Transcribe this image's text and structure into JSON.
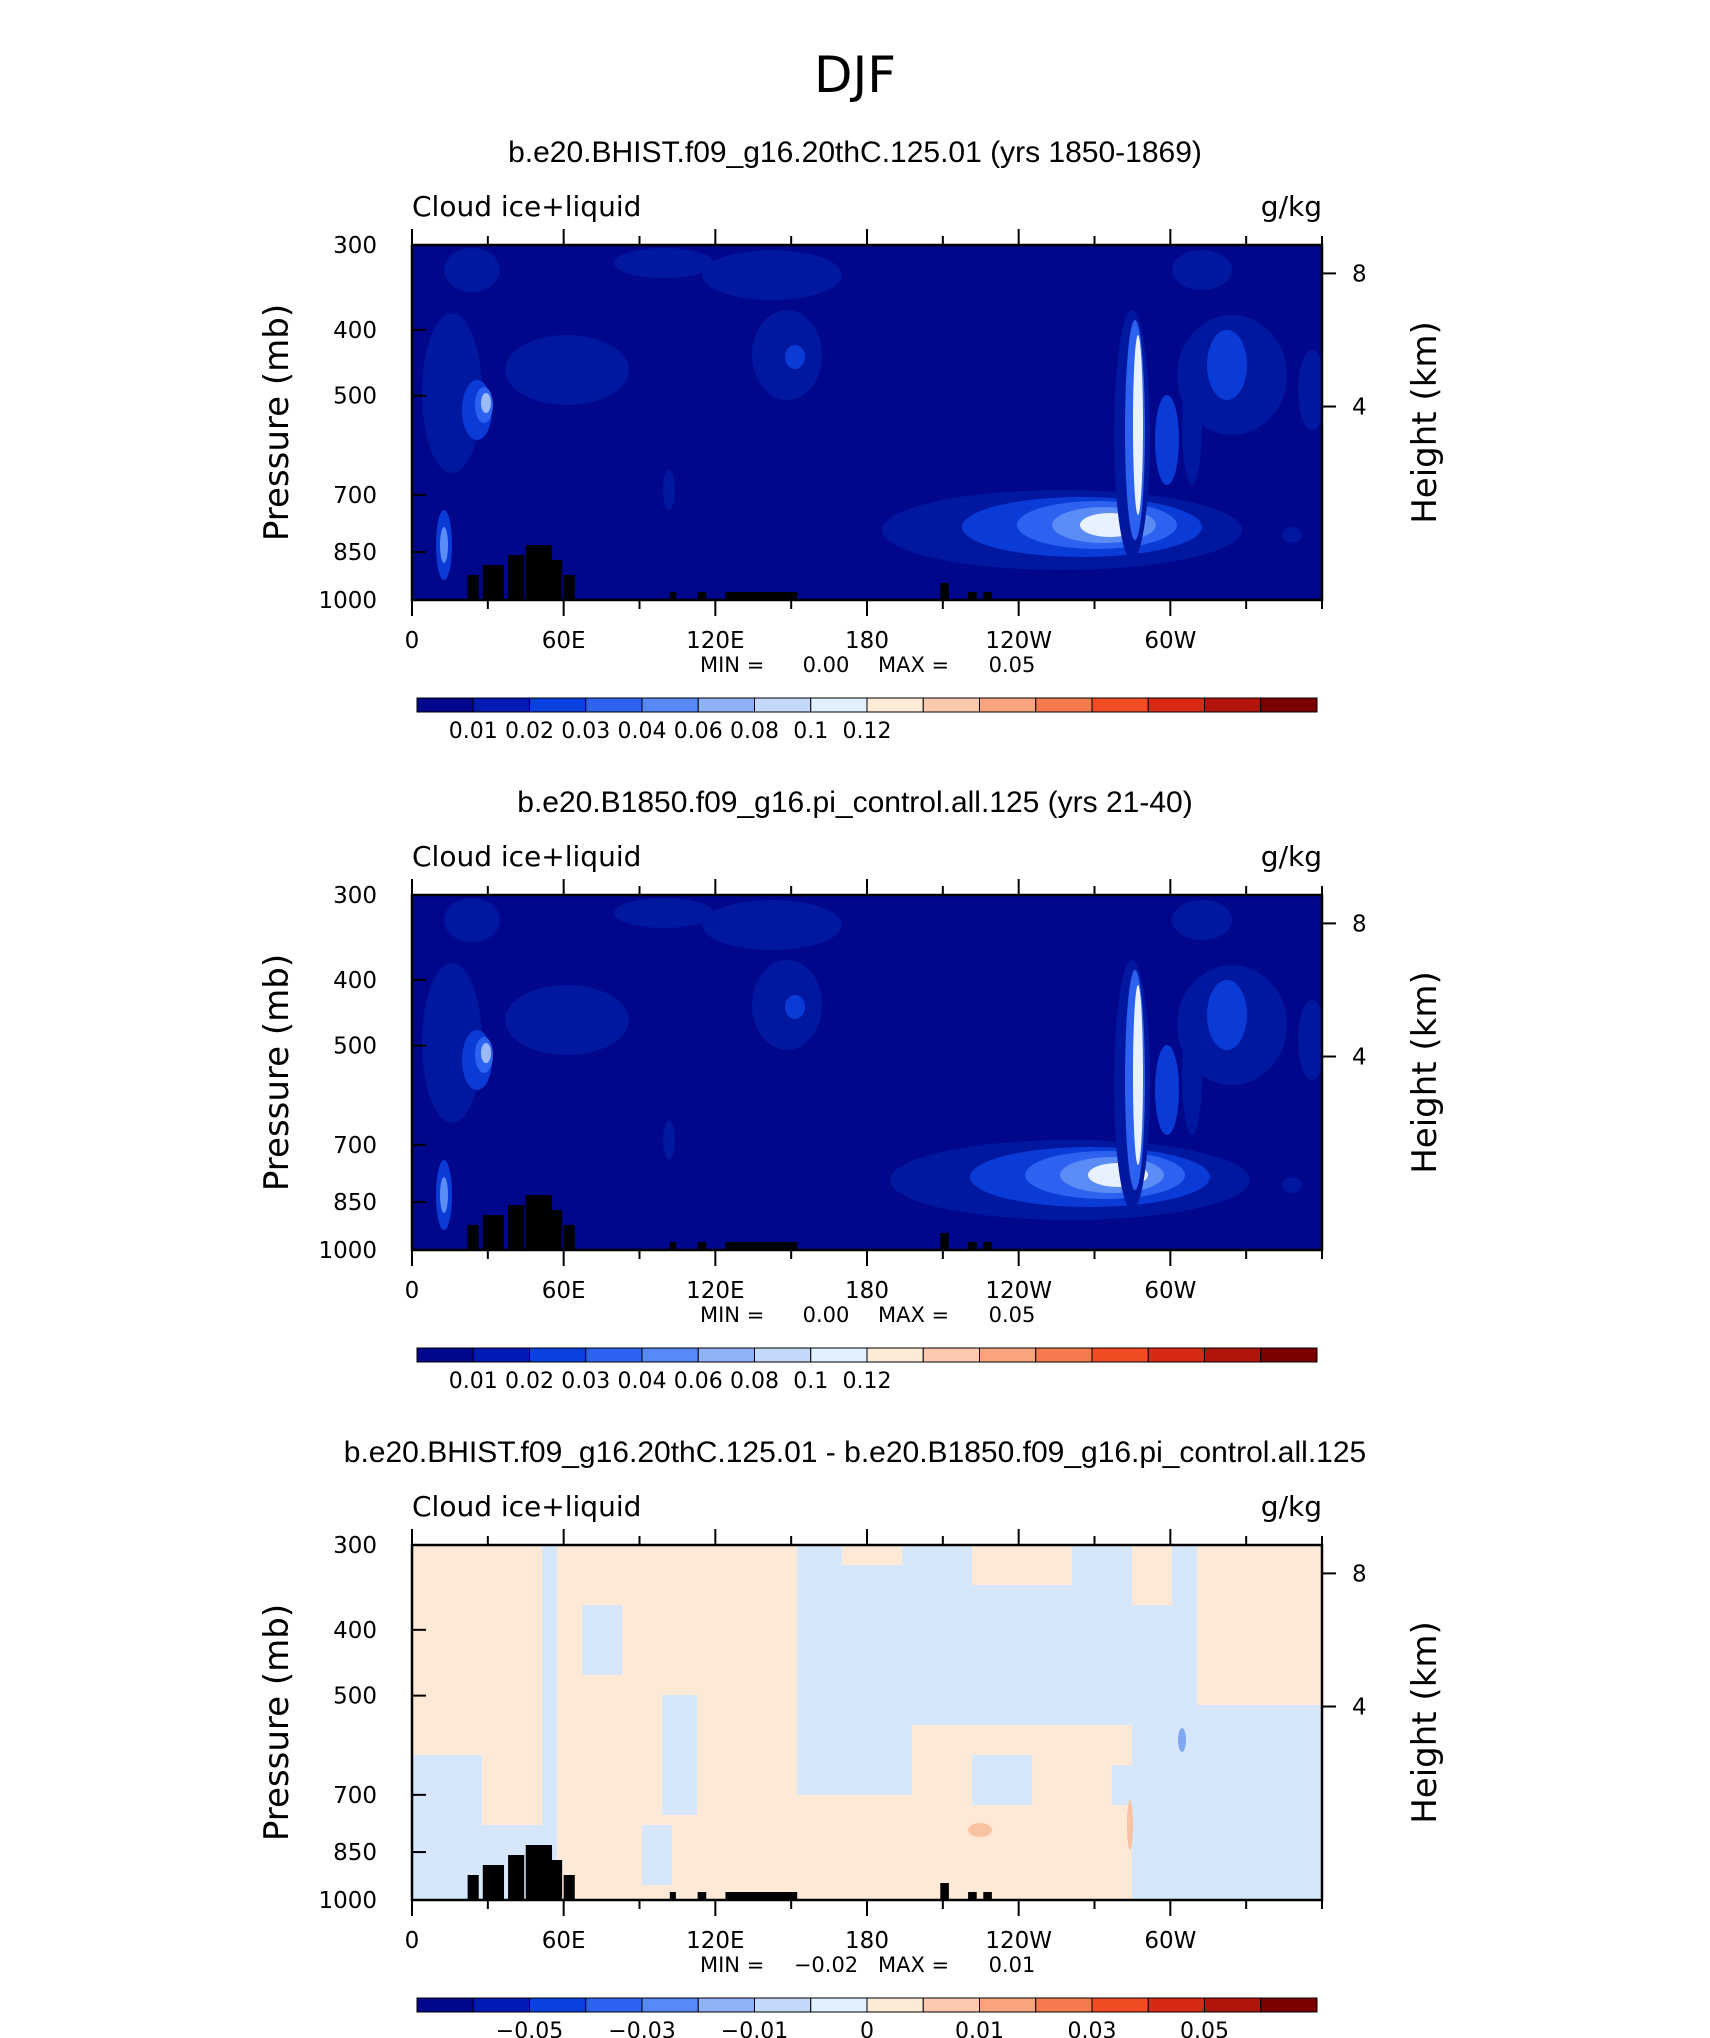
{
  "figure_title": "DJF",
  "panels": [
    {
      "title": "b.e20.BHIST.f09_g16.20thC.125.01 (yrs 1850-1869)",
      "left_label": "Cloud ice+liquid",
      "right_label": "g/kg",
      "stats_min_label": "MIN =",
      "stats_min": "0.00",
      "stats_max_label": "MAX =",
      "stats_max": "0.05"
    },
    {
      "title": "b.e20.B1850.f09_g16.pi_control.all.125 (yrs 21-40)",
      "left_label": "Cloud ice+liquid",
      "right_label": "g/kg",
      "stats_min_label": "MIN =",
      "stats_min": "0.00",
      "stats_max_label": "MAX =",
      "stats_max": "0.05"
    },
    {
      "title": "b.e20.BHIST.f09_g16.20thC.125.01 - b.e20.B1850.f09_g16.pi_control.all.125",
      "left_label": "Cloud ice+liquid",
      "right_label": "g/kg",
      "stats_min_label": "MIN =",
      "stats_min": "−0.02",
      "stats_max_label": "MAX =",
      "stats_max": "0.01"
    }
  ],
  "chart_data": [
    {
      "type": "heatmap",
      "title": "b.e20.BHIST.f09_g16.20thC.125.01 (yrs 1850-1869)",
      "variable": "Cloud ice+liquid",
      "units": "g/kg",
      "xlabel": "",
      "ylabel": "Pressure (mb)",
      "y2label": "Height (km)",
      "x_ticks": [
        "0",
        "60E",
        "120E",
        "180",
        "120W",
        "60W"
      ],
      "x_tick_values": [
        0,
        60,
        120,
        180,
        240,
        300
      ],
      "xlim": [
        0,
        360
      ],
      "y_ticks": [
        300,
        400,
        500,
        700,
        850,
        1000
      ],
      "ylim": [
        1000,
        300
      ],
      "y2_ticks": [
        8,
        4
      ],
      "min": 0.0,
      "max": 0.05,
      "colorbar_labels": [
        "0.01",
        "0.02",
        "0.03",
        "0.04",
        "0.06",
        "0.08",
        "0.1",
        "0.12"
      ],
      "colorbar_colors": [
        "#00078b",
        "#001ab5",
        "#0a3fe0",
        "#2e63f2",
        "#5989f6",
        "#8fb1f8",
        "#c3d8fb",
        "#e2efff",
        "#fdebd8",
        "#fbcaae",
        "#f9a37f",
        "#f67a4f",
        "#f14d24",
        "#da2913",
        "#b0140a",
        "#7d0000"
      ]
    },
    {
      "type": "heatmap",
      "title": "b.e20.B1850.f09_g16.pi_control.all.125 (yrs 21-40)",
      "variable": "Cloud ice+liquid",
      "units": "g/kg",
      "xlabel": "",
      "ylabel": "Pressure (mb)",
      "y2label": "Height (km)",
      "x_ticks": [
        "0",
        "60E",
        "120E",
        "180",
        "120W",
        "60W"
      ],
      "x_tick_values": [
        0,
        60,
        120,
        180,
        240,
        300
      ],
      "xlim": [
        0,
        360
      ],
      "y_ticks": [
        300,
        400,
        500,
        700,
        850,
        1000
      ],
      "ylim": [
        1000,
        300
      ],
      "y2_ticks": [
        8,
        4
      ],
      "min": 0.0,
      "max": 0.05,
      "colorbar_labels": [
        "0.01",
        "0.02",
        "0.03",
        "0.04",
        "0.06",
        "0.08",
        "0.1",
        "0.12"
      ],
      "colorbar_colors": [
        "#00078b",
        "#001ab5",
        "#0a3fe0",
        "#2e63f2",
        "#5989f6",
        "#8fb1f8",
        "#c3d8fb",
        "#e2efff",
        "#fdebd8",
        "#fbcaae",
        "#f9a37f",
        "#f67a4f",
        "#f14d24",
        "#da2913",
        "#b0140a",
        "#7d0000"
      ]
    },
    {
      "type": "heatmap",
      "title": "b.e20.BHIST.f09_g16.20thC.125.01 - b.e20.B1850.f09_g16.pi_control.all.125",
      "variable": "Cloud ice+liquid",
      "units": "g/kg",
      "xlabel": "",
      "ylabel": "Pressure (mb)",
      "y2label": "Height (km)",
      "x_ticks": [
        "0",
        "60E",
        "120E",
        "180",
        "120W",
        "60W"
      ],
      "x_tick_values": [
        0,
        60,
        120,
        180,
        240,
        300
      ],
      "xlim": [
        0,
        360
      ],
      "y_ticks": [
        300,
        400,
        500,
        700,
        850,
        1000
      ],
      "ylim": [
        1000,
        300
      ],
      "y2_ticks": [
        8,
        4
      ],
      "min": -0.02,
      "max": 0.01,
      "colorbar_labels": [
        "−0.05",
        "−0.03",
        "−0.01",
        "0",
        "0.01",
        "0.03",
        "0.05"
      ],
      "colorbar_colors": [
        "#00078b",
        "#001ab5",
        "#0a3fe0",
        "#2e63f2",
        "#5989f6",
        "#8fb1f8",
        "#c3d8fb",
        "#e2efff",
        "#fdebd8",
        "#fbcaae",
        "#f9a37f",
        "#f67a4f",
        "#f14d24",
        "#da2913",
        "#b0140a",
        "#7d0000"
      ]
    }
  ],
  "style": {
    "field_colors": [
      "#00078b",
      "#00179f",
      "#0b3bd6",
      "#2c62ef",
      "#5b8cf5",
      "#9dbaf8",
      "#e8f1ff"
    ],
    "diff_colors": {
      "neg": "#d6e7fb",
      "pos": "#fde9d6",
      "warm": "#f8c2a3",
      "cold": "#7fa7f2"
    },
    "terrain": "#000000"
  }
}
